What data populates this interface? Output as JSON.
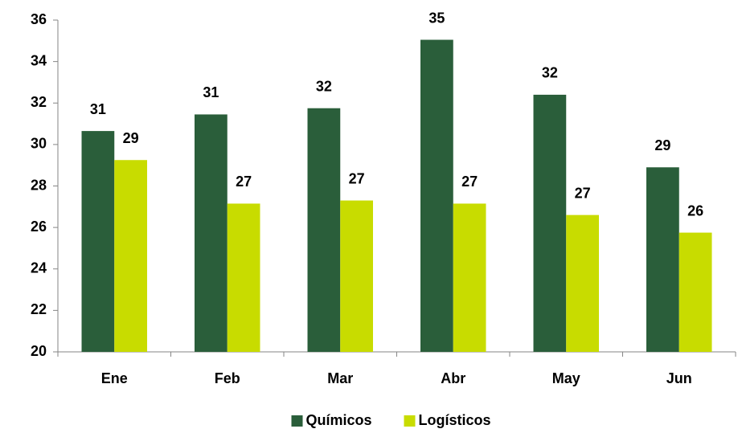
{
  "chart_data": {
    "type": "bar",
    "categories": [
      "Ene",
      "Feb",
      "Mar",
      "Abr",
      "May",
      "Jun"
    ],
    "series": [
      {
        "name": "Químicos",
        "color": "#2a5e3a",
        "values": [
          30.65,
          31.45,
          31.75,
          35.05,
          32.4,
          28.9
        ],
        "value_labels": [
          "31",
          "31",
          "32",
          "35",
          "32",
          "29"
        ]
      },
      {
        "name": "Logísticos",
        "color": "#c8dc00",
        "values": [
          29.25,
          27.15,
          27.3,
          27.15,
          26.6,
          25.75
        ],
        "value_labels": [
          "29",
          "27",
          "27",
          "27",
          "27",
          "26"
        ]
      }
    ],
    "ylim": [
      20,
      36
    ],
    "yticks": [
      20,
      22,
      24,
      26,
      28,
      30,
      32,
      34,
      36
    ],
    "grid": false,
    "legend": "bottom"
  }
}
